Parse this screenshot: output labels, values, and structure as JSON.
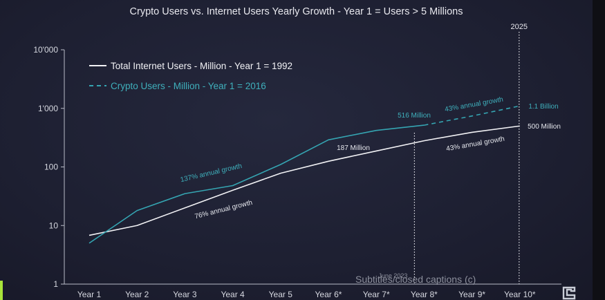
{
  "chart_data": {
    "type": "line",
    "title": "Crypto Users vs. Internet Users Yearly Growth - Year 1 = Users > 5 Millions",
    "categories": [
      "Year 1",
      "Year 2",
      "Year 3",
      "Year 4",
      "Year 5",
      "Year 6*",
      "Year 7*",
      "Year 8*",
      "Year 9*",
      "Year 10*"
    ],
    "y_scale": "log",
    "ylim": [
      1,
      10000
    ],
    "y_ticks": [
      {
        "value": 1,
        "label": "1"
      },
      {
        "value": 10,
        "label": "10"
      },
      {
        "value": 100,
        "label": "100"
      },
      {
        "value": 1000,
        "label": "1'000"
      },
      {
        "value": 10000,
        "label": "10'000"
      }
    ],
    "series": [
      {
        "name": "Total Internet Users - Million - Year 1 = 1992",
        "color": "#f2f2f5",
        "style": "solid",
        "values": [
          6.8,
          10,
          20,
          40,
          78,
          125,
          187,
          280,
          390,
          500
        ]
      },
      {
        "name": "Crypto Users - Million - Year 1 = 2016",
        "color": "#35a5b2",
        "style": "solid-then-dashed",
        "dash_from_index": 7,
        "values": [
          5,
          18,
          35,
          48,
          110,
          290,
          420,
          516,
          740,
          1100
        ]
      }
    ],
    "vlines": [
      {
        "at_index": 7,
        "label": "June 2023"
      },
      {
        "at_index": 9,
        "label": "2025"
      }
    ],
    "annotations": [
      {
        "id": "cagr-crypto-early",
        "text": "137% annual growth",
        "series": 1
      },
      {
        "id": "cagr-internet-early",
        "text": "76% annual growth",
        "series": 0
      },
      {
        "id": "crypto-516",
        "text": "516 Million",
        "series": 1
      },
      {
        "id": "internet-187",
        "text": "187 Million",
        "series": 0
      },
      {
        "id": "cagr-crypto-late",
        "text": "43% annual growth",
        "series": 1
      },
      {
        "id": "cagr-internet-late",
        "text": "43% annual growth",
        "series": 0
      },
      {
        "id": "crypto-end",
        "text": "1.1 Billion",
        "series": 1
      },
      {
        "id": "internet-end",
        "text": "500 Million",
        "series": 0
      }
    ]
  },
  "caption": "Subtitles/closed captions (c)"
}
